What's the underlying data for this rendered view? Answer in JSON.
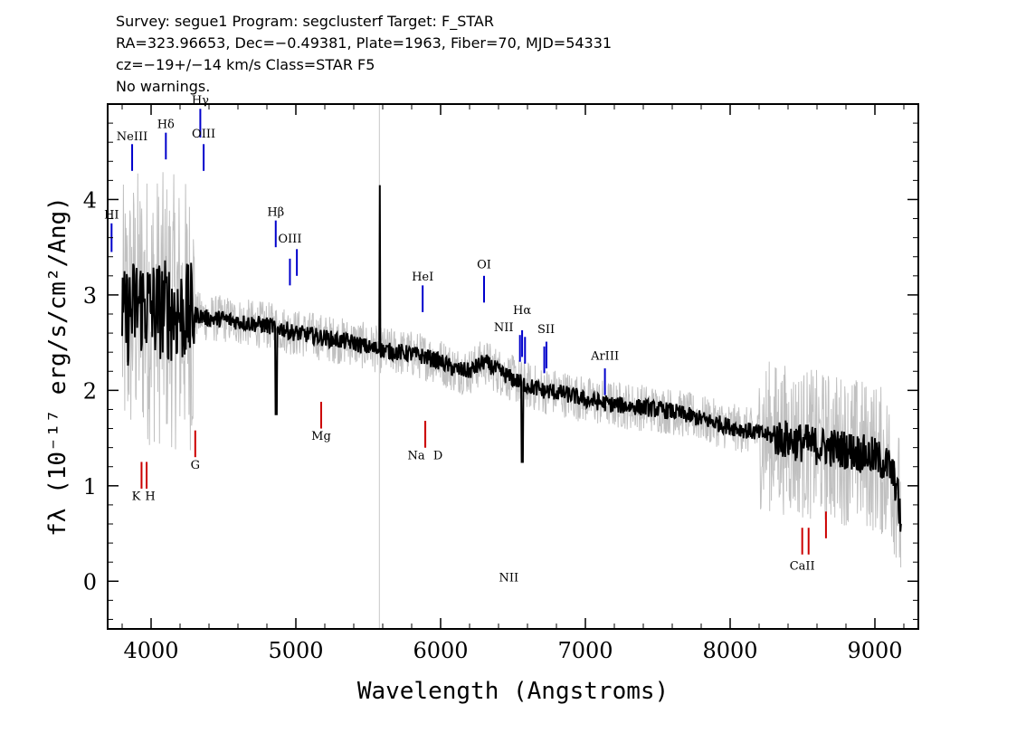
{
  "header": {
    "line1": "Survey: segue1 Program: segclusterf Target: F_STAR",
    "line2": "RA=323.96653, Dec=−0.49381, Plate=1963, Fiber=70, MJD=54331",
    "line3": "cz=−19+/−14 km/s Class=STAR F5",
    "line4": "No warnings."
  },
  "chart_data": {
    "type": "line",
    "xlabel": "Wavelength (Angstroms)",
    "ylabel": "fλ (10⁻¹⁷ erg/s/cm²/Ang)",
    "xlim": [
      3700,
      9300
    ],
    "ylim": [
      -0.5,
      5.0
    ],
    "x_ticks": [
      4000,
      5000,
      6000,
      7000,
      8000,
      9000
    ],
    "y_ticks": [
      0,
      1,
      2,
      3,
      4
    ],
    "grid": false,
    "series": [
      {
        "color": "#000000",
        "x": [
          3800,
          3850,
          3900,
          3950,
          4000,
          4100,
          4200,
          4300,
          4400,
          4500,
          4600,
          4700,
          4800,
          4900,
          5000,
          5100,
          5200,
          5300,
          5400,
          5500,
          5600,
          5700,
          5800,
          5900,
          6000,
          6100,
          6200,
          6300,
          6400,
          6500,
          6600,
          6700,
          6800,
          6900,
          7000,
          7200,
          7400,
          7600,
          7800,
          8000,
          8200,
          8400,
          8600,
          8800,
          9000,
          9100,
          9150,
          9180
        ],
        "y": [
          2.7,
          2.8,
          2.9,
          2.9,
          2.85,
          2.85,
          2.8,
          2.8,
          2.75,
          2.75,
          2.72,
          2.7,
          2.68,
          2.65,
          2.6,
          2.58,
          2.55,
          2.52,
          2.5,
          2.45,
          2.42,
          2.4,
          2.38,
          2.35,
          2.3,
          2.22,
          2.2,
          2.3,
          2.2,
          2.12,
          2.05,
          2.0,
          1.98,
          1.95,
          1.9,
          1.85,
          1.82,
          1.78,
          1.7,
          1.62,
          1.55,
          1.48,
          1.42,
          1.38,
          1.3,
          1.2,
          1.0,
          0.6
        ]
      }
    ],
    "emission_lines": [
      {
        "label": "HⅠ",
        "wave": 3727,
        "y0": 3.45,
        "y1": 3.75,
        "label_y": 3.8,
        "color": "#0000cc"
      },
      {
        "label": "NeIII",
        "wave": 3869,
        "y0": 4.3,
        "y1": 4.58,
        "label_y": 4.62,
        "color": "#0000cc"
      },
      {
        "label": "Hδ",
        "wave": 4102,
        "y0": 4.42,
        "y1": 4.7,
        "label_y": 4.75,
        "color": "#0000cc"
      },
      {
        "label": "Hγ",
        "wave": 4340,
        "y0": 4.65,
        "y1": 4.95,
        "label_y": 5.0,
        "color": "#0000cc"
      },
      {
        "label": "OIII",
        "wave": 4363,
        "y0": 4.3,
        "y1": 4.58,
        "label_y": 4.65,
        "color": "#0000cc"
      },
      {
        "label": "Hβ",
        "wave": 4861,
        "y0": 3.5,
        "y1": 3.78,
        "label_y": 3.83,
        "color": "#0000cc"
      },
      {
        "label": "OIII",
        "wave": 4959,
        "y0": 3.1,
        "y1": 3.38,
        "label_y": 3.55,
        "color": "#0000cc"
      },
      {
        "label": "",
        "wave": 5007,
        "y0": 3.2,
        "y1": 3.48,
        "label_y": 0,
        "color": "#0000cc"
      },
      {
        "label": "HeI",
        "wave": 5876,
        "y0": 2.82,
        "y1": 3.1,
        "label_y": 3.15,
        "color": "#0000cc"
      },
      {
        "label": "OI",
        "wave": 6300,
        "y0": 2.92,
        "y1": 3.2,
        "label_y": 3.28,
        "color": "#0000cc"
      },
      {
        "label": "NII",
        "wave": 6548,
        "y0": 2.3,
        "y1": 2.58,
        "label_y": 2.62,
        "color": "#0000cc"
      },
      {
        "label": "Hα",
        "wave": 6563,
        "y0": 2.35,
        "y1": 2.63,
        "label_y": 2.8,
        "color": "#0000cc"
      },
      {
        "label": "NII",
        "wave": 6583,
        "y0": 2.28,
        "y1": 2.56,
        "label_y": 0,
        "color": "#0000cc"
      },
      {
        "label": "SII",
        "wave": 6716,
        "y0": 2.18,
        "y1": 2.46,
        "label_y": 2.6,
        "color": "#0000cc"
      },
      {
        "label": "",
        "wave": 6731,
        "y0": 2.23,
        "y1": 2.51,
        "label_y": 0,
        "color": "#0000cc"
      },
      {
        "label": "ArIII",
        "wave": 7135,
        "y0": 1.95,
        "y1": 2.23,
        "label_y": 2.32,
        "color": "#0000cc"
      }
    ],
    "absorption_lines": [
      {
        "label": "K",
        "wave": 3934,
        "y0": 0.97,
        "y1": 1.25,
        "label_y": 0.85,
        "color": "#cc0000"
      },
      {
        "label": "H",
        "wave": 3969,
        "y0": 0.97,
        "y1": 1.25,
        "label_y": 0.85,
        "color": "#cc0000"
      },
      {
        "label": "G",
        "wave": 4305,
        "y0": 1.3,
        "y1": 1.58,
        "label_y": 1.18,
        "color": "#cc0000"
      },
      {
        "label": "Mg",
        "wave": 5175,
        "y0": 1.6,
        "y1": 1.88,
        "label_y": 1.48,
        "color": "#cc0000"
      },
      {
        "label": "Na",
        "wave": 5894,
        "y0": 1.4,
        "y1": 1.68,
        "label_y": 1.28,
        "color": "#cc0000"
      },
      {
        "label": "D",
        "wave": 5894,
        "y0": 1.4,
        "y1": 1.68,
        "label_y": 1.28,
        "color": "#cc0000"
      },
      {
        "label": "CaII",
        "wave": 8498,
        "y0": 0.28,
        "y1": 0.56,
        "label_y": 0.12,
        "color": "#cc0000"
      },
      {
        "label": "",
        "wave": 8542,
        "y0": 0.28,
        "y1": 0.56,
        "label_y": 0,
        "color": "#cc0000"
      },
      {
        "label": "",
        "wave": 8662,
        "y0": 0.45,
        "y1": 0.73,
        "label_y": 0,
        "color": "#cc0000"
      }
    ]
  }
}
